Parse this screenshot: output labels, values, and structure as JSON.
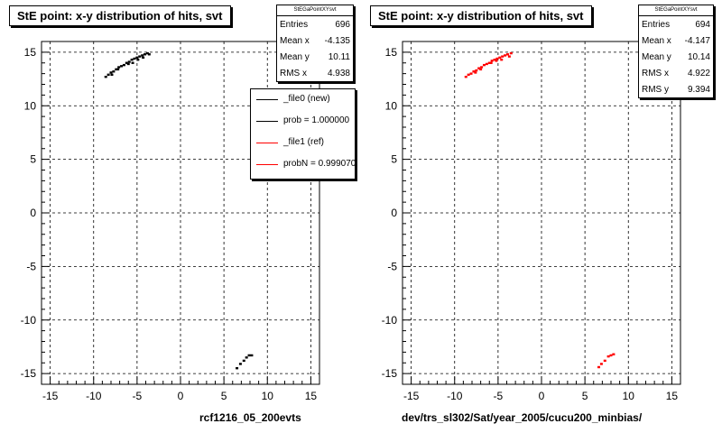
{
  "chart_data": [
    {
      "type": "scatter",
      "title": "StE point: x-y distribution of hits, svt",
      "xlabel": "rcf1216_05_200evts",
      "ylabel": "",
      "xlim": [
        -16,
        16
      ],
      "ylim": [
        -16,
        16
      ],
      "grid": true,
      "xticks": [
        "-15",
        "-10",
        "-5",
        "0",
        "5",
        "10",
        "15"
      ],
      "yticks": [
        "15",
        "10",
        "5",
        "0",
        "-5",
        "-10",
        "-15"
      ],
      "stats": {
        "name": "StEGaPointXYsvt",
        "rows": [
          {
            "label": "Entries",
            "value": "696"
          },
          {
            "label": "Mean x",
            "value": "-4.135"
          },
          {
            "label": "Mean y",
            "value": "10.11"
          },
          {
            "label": "RMS x",
            "value": "4.938"
          }
        ]
      },
      "legend": [
        {
          "label": "_file0 (new)",
          "color": "#000000"
        },
        {
          "label": "prob = 1.000000",
          "color": "#000000"
        },
        {
          "label": "_file1 (ref)",
          "color": "#ff0000"
        },
        {
          "label": "probN = 0.999070",
          "color": "#ff0000"
        }
      ],
      "series": [
        {
          "color": "#000000",
          "points": [
            [
              -8.6,
              12.7
            ],
            [
              -8.3,
              12.9
            ],
            [
              -8.0,
              13.1
            ],
            [
              -7.7,
              13.2
            ],
            [
              -7.4,
              13.4
            ],
            [
              -7.1,
              13.6
            ],
            [
              -6.8,
              13.7
            ],
            [
              -6.5,
              13.8
            ],
            [
              -6.2,
              14.0
            ],
            [
              -5.9,
              14.1
            ],
            [
              -5.6,
              14.3
            ],
            [
              -5.3,
              14.4
            ],
            [
              -5.0,
              14.5
            ],
            [
              -4.7,
              14.6
            ],
            [
              -4.4,
              14.7
            ],
            [
              -4.1,
              14.8
            ],
            [
              -3.8,
              14.9
            ],
            [
              -7.9,
              12.9
            ],
            [
              -6.0,
              13.9
            ],
            [
              -4.9,
              14.3
            ],
            [
              -4.3,
              14.5
            ],
            [
              -7.2,
              13.4
            ],
            [
              -5.5,
              14.0
            ],
            [
              -3.6,
              14.8
            ],
            [
              6.9,
              -14.1
            ],
            [
              7.3,
              -13.8
            ],
            [
              7.6,
              -13.5
            ],
            [
              7.9,
              -13.3
            ],
            [
              8.2,
              -13.3
            ],
            [
              6.5,
              -14.5
            ]
          ]
        }
      ]
    },
    {
      "type": "scatter",
      "title": "StE point: x-y distribution of hits, svt",
      "xlabel": "dev/trs_sl302/Sat/year_2005/cucu200_minbias/",
      "ylabel": "",
      "xlim": [
        -16,
        16
      ],
      "ylim": [
        -16,
        16
      ],
      "grid": true,
      "xticks": [
        "-15",
        "-10",
        "-5",
        "0",
        "5",
        "10",
        "15"
      ],
      "yticks": [
        "15",
        "10",
        "5",
        "0",
        "-5",
        "-10",
        "-15"
      ],
      "stats": {
        "name": "StEGaPointXYsvt",
        "rows": [
          {
            "label": "Entries",
            "value": "694"
          },
          {
            "label": "Mean x",
            "value": "-4.147"
          },
          {
            "label": "Mean y",
            "value": "10.14"
          },
          {
            "label": "RMS x",
            "value": "4.922"
          },
          {
            "label": "RMS y",
            "value": "9.394"
          }
        ]
      },
      "series": [
        {
          "color": "#ff0000",
          "points": [
            [
              -8.7,
              12.7
            ],
            [
              -8.4,
              12.9
            ],
            [
              -8.1,
              13.0
            ],
            [
              -7.8,
              13.2
            ],
            [
              -7.5,
              13.3
            ],
            [
              -7.2,
              13.5
            ],
            [
              -6.9,
              13.6
            ],
            [
              -6.6,
              13.8
            ],
            [
              -6.3,
              13.9
            ],
            [
              -6.0,
              14.0
            ],
            [
              -5.7,
              14.2
            ],
            [
              -5.4,
              14.3
            ],
            [
              -5.1,
              14.4
            ],
            [
              -4.8,
              14.5
            ],
            [
              -4.5,
              14.6
            ],
            [
              -4.2,
              14.7
            ],
            [
              -3.9,
              14.8
            ],
            [
              -3.5,
              14.9
            ],
            [
              -7.6,
              13.1
            ],
            [
              -5.8,
              14.0
            ],
            [
              -4.6,
              14.3
            ],
            [
              -3.7,
              14.6
            ],
            [
              -7.0,
              13.4
            ],
            [
              -5.2,
              14.2
            ],
            [
              6.9,
              -14.1
            ],
            [
              7.3,
              -13.8
            ],
            [
              7.7,
              -13.4
            ],
            [
              8.0,
              -13.3
            ],
            [
              8.3,
              -13.2
            ],
            [
              6.6,
              -14.4
            ]
          ]
        }
      ]
    }
  ]
}
